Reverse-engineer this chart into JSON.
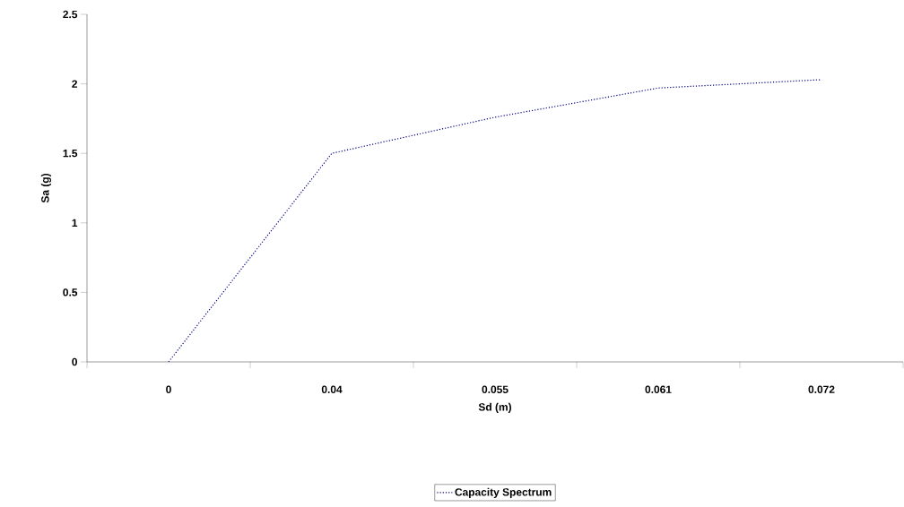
{
  "chart_data": {
    "type": "line",
    "xlabel": "Sd (m)",
    "ylabel": "Sa (g)",
    "categories": [
      "0",
      "0.04",
      "0.055",
      "0.061",
      "0.072"
    ],
    "series": [
      {
        "name": "Capacity Spectrum",
        "color": "#000080",
        "values": [
          0,
          1.5,
          1.76,
          1.97,
          2.03
        ]
      }
    ],
    "ylim": [
      0,
      2.5
    ],
    "yticks": [
      0,
      0.5,
      1,
      1.5,
      2,
      2.5
    ],
    "legend": "bottom",
    "line_style": "dotted",
    "marker": "none",
    "grid": false
  }
}
